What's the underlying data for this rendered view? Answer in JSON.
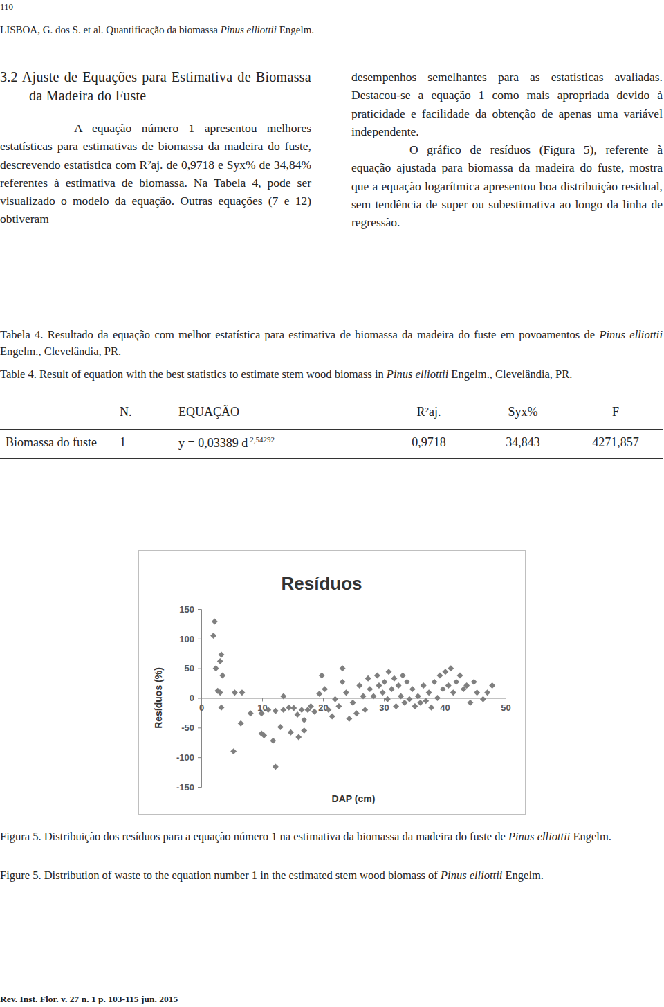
{
  "page_number": "110",
  "running_head": [
    {
      "text": "LISBOA, G. dos S. et al. Quantificação da biomassa "
    },
    {
      "text": "Pinus elliottii",
      "italic": true
    },
    {
      "text": " Engelm."
    }
  ],
  "section": {
    "heading": "3.2 Ajuste de Equações para Estimativa de Biomassa da Madeira do Fuste",
    "left_text": "A equação número 1 apresentou melhores estatísticas para estimativas de biomassa da madeira do fuste, descrevendo estatística com R²aj. de 0,9718 e Syx% de 34,84% referentes à estimativa de biomassa. Na Tabela 4, pode ser visualizado o modelo da equação. Outras equações (7 e 12) obtiveram",
    "right_text": "desempenhos semelhantes para as estatísticas avaliadas. Destacou-se a equação 1 como mais apropriada devido à praticidade e facilidade da obtenção de apenas uma variável independente.",
    "paragraph2": "O gráfico de resíduos (Figura 5), referente à equação ajustada para biomassa da madeira do fuste, mostra que a equação logarítmica apresentou boa distribuição residual, sem tendência de super ou subestimativa ao longo da linha de regressão."
  },
  "table": {
    "caption_pt": [
      {
        "text": "Tabela 4. Resultado da equação com melhor estatística para estimativa de biomassa da madeira do fuste em povoamentos de "
      },
      {
        "text": "Pinus elliottii",
        "italic": true
      },
      {
        "text": " Engelm., Clevelândia, PR."
      }
    ],
    "caption_en": [
      {
        "text": "Table 4. Result of equation with the best statistics to estimate stem wood biomass in "
      },
      {
        "text": "Pinus elliottii",
        "italic": true
      },
      {
        "text": " Engelm., Clevelândia, PR."
      }
    ],
    "header": [
      "N.",
      "EQUAÇÃO",
      "R²aj.",
      "Syx%",
      "F"
    ],
    "rows": [
      {
        "label": "Biomassa do fuste",
        "n": "1",
        "equation": {
          "base": "y = 0,03389 d",
          "exponent": "2,54292"
        },
        "r2": "0,9718",
        "syx": "34,843",
        "f": "4271,857"
      }
    ]
  },
  "chart_data": {
    "type": "scatter",
    "title": "Resíduos",
    "x_label": "DAP (cm)",
    "y_label": "Resíduos (%)",
    "color": "#7f7f7f",
    "marker": "diamond",
    "grid": false,
    "xlim": [
      0,
      50
    ],
    "ylim": [
      -150,
      150
    ],
    "xticks": [
      0,
      10,
      20,
      30,
      40,
      50
    ],
    "yticks": [
      -150,
      -100,
      -50,
      0,
      50,
      100,
      150
    ],
    "x": [
      2.2,
      2.0,
      3.3,
      3.1,
      2.4,
      3.5,
      2.7,
      3.1,
      5.5,
      6.7,
      3.3,
      5.3,
      6.5,
      8.1,
      9.9,
      9.9,
      10.3,
      11.8,
      12.2,
      11.0,
      12.2,
      13.5,
      13.5,
      14.4,
      15.2,
      15.8,
      16.5,
      16.9,
      17.5,
      13.0,
      14.7,
      16.0,
      16.9,
      18.0,
      18.6,
      19.4,
      20.3,
      20.9,
      21.5,
      22.0,
      22.6,
      23.2,
      23.8,
      24.3,
      24.9,
      25.5,
      26.0,
      26.6,
      26.9,
      27.4,
      27.7,
      28.3,
      28.9,
      29.2,
      29.8,
      30.1,
      30.6,
      30.8,
      31.3,
      31.7,
      32.0,
      32.4,
      32.8,
      33.1,
      33.4,
      33.8,
      34.2,
      34.7,
      35.1,
      35.6,
      36.0,
      36.5,
      36.9,
      37.4,
      37.8,
      38.3,
      38.8,
      39.2,
      39.7,
      40.1,
      40.6,
      41.0,
      41.4,
      41.9,
      42.5,
      43.1,
      43.6,
      44.2,
      44.8,
      45.3,
      46.3,
      47.0,
      47.8,
      19.8,
      23.2
    ],
    "values": [
      129,
      105,
      73,
      62,
      50,
      38,
      12,
      9,
      9,
      9,
      -16,
      -90,
      -43,
      -26,
      -26,
      -60,
      -63,
      -72,
      -116,
      -20,
      -22,
      -20,
      3,
      -16,
      -17,
      -28,
      -20,
      -37,
      -20,
      -49,
      -58,
      -66,
      -55,
      -14,
      -23,
      7,
      15,
      -20,
      -31,
      -2,
      -14,
      27,
      9,
      -35,
      -8,
      -26,
      21,
      3,
      -20,
      33,
      15,
      3,
      38,
      21,
      9,
      27,
      -2,
      44,
      15,
      33,
      -14,
      21,
      3,
      38,
      -8,
      27,
      -2,
      15,
      -14,
      3,
      -8,
      21,
      -5,
      9,
      -16,
      27,
      0,
      38,
      15,
      44,
      21,
      50,
      9,
      27,
      38,
      15,
      21,
      -8,
      27,
      9,
      -2,
      9,
      21,
      38,
      50
    ]
  },
  "figure_caption_pt": [
    {
      "text": "Figura 5. Distribuição dos resíduos para a equação número 1 na estimativa da biomassa da madeira do fuste de "
    },
    {
      "text": "Pinus elliottii",
      "italic": true
    },
    {
      "text": " Engelm."
    }
  ],
  "figure_caption_en": [
    {
      "text": "Figure 5. Distribution of waste to the equation number 1 in the estimated stem wood biomass of "
    },
    {
      "text": "Pinus elliottii",
      "italic": true
    },
    {
      "text": " Engelm."
    }
  ],
  "footer": "Rev. Inst. Flor. v. 27 n. 1 p. 103-115 jun. 2015"
}
